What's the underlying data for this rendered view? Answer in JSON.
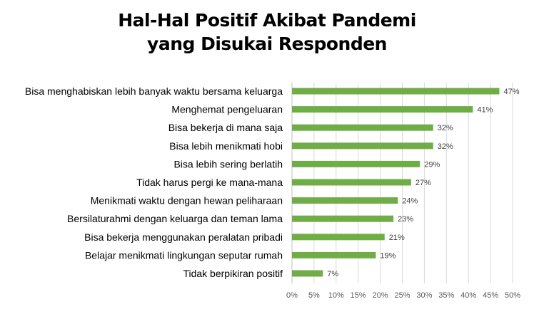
{
  "chart_data": {
    "type": "bar",
    "orientation": "horizontal",
    "title_lines": [
      "Hal-Hal Positif Akibat Pandemi",
      "yang Disukai Responden"
    ],
    "categories": [
      "Bisa menghabiskan lebih banyak waktu bersama keluarga",
      "Menghemat pengeluaran",
      "Bisa bekerja di mana saja",
      "Bisa lebih menikmati hobi",
      "Bisa lebih sering berlatih",
      "Tidak harus pergi ke mana-mana",
      "Menikmati waktu dengan hewan peliharaan",
      "Bersilaturahmi dengan keluarga dan teman lama",
      "Bisa bekerja menggunakan peralatan pribadi",
      "Belajar menikmati lingkungan seputar rumah",
      "Tidak berpikiran positif"
    ],
    "values": [
      47,
      41,
      32,
      32,
      29,
      27,
      24,
      23,
      21,
      19,
      7
    ],
    "data_labels": [
      "47%",
      "41%",
      "32%",
      "32%",
      "29%",
      "27%",
      "24%",
      "23%",
      "21%",
      "19%",
      "7%"
    ],
    "x_ticks": [
      0,
      5,
      10,
      15,
      20,
      25,
      30,
      35,
      40,
      45,
      50
    ],
    "x_tick_labels": [
      "0%",
      "5%",
      "10%",
      "15%",
      "20%",
      "25%",
      "30%",
      "35%",
      "40%",
      "45%",
      "50%"
    ],
    "xlim": [
      0,
      50
    ],
    "grid": true,
    "bar_color": "#70ad47"
  }
}
